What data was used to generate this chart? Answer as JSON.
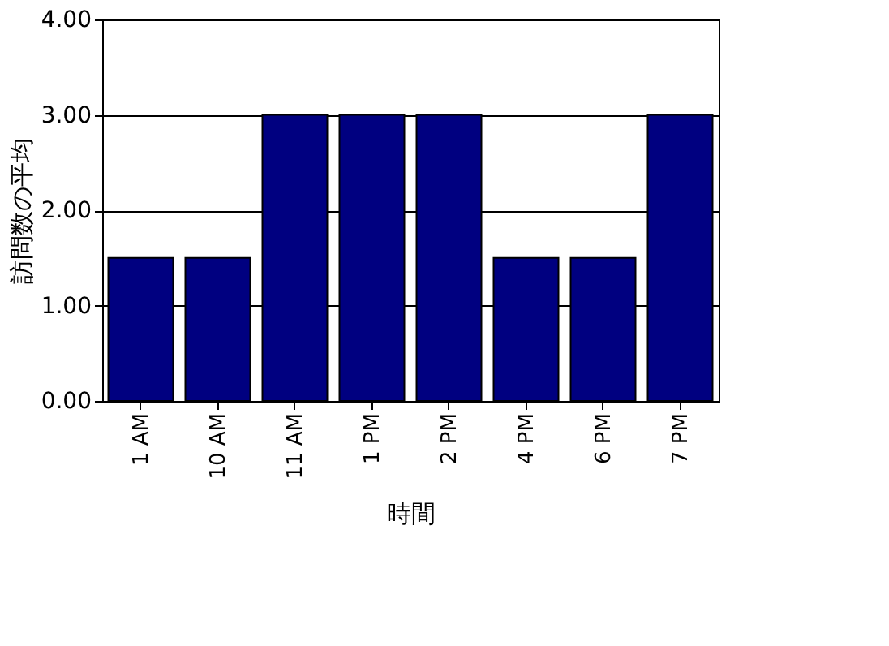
{
  "chart_data": {
    "type": "bar",
    "xlabel": "時間",
    "ylabel": "訪問数の平均",
    "categories": [
      "1 AM",
      "10 AM",
      "11 AM",
      "1 PM",
      "2 PM",
      "4 PM",
      "6 PM",
      "7 PM"
    ],
    "values": [
      1.5,
      1.5,
      3,
      3,
      3,
      1.5,
      1.5,
      3
    ],
    "color": "#000080",
    "ylim": [
      0,
      4
    ],
    "yticks": [
      {
        "value": 0,
        "label": "0.00"
      },
      {
        "value": 1,
        "label": "1.00"
      },
      {
        "value": 2,
        "label": "2.00"
      },
      {
        "value": 3,
        "label": "3.00"
      },
      {
        "value": 4,
        "label": "4.00"
      }
    ],
    "grid": "y"
  }
}
